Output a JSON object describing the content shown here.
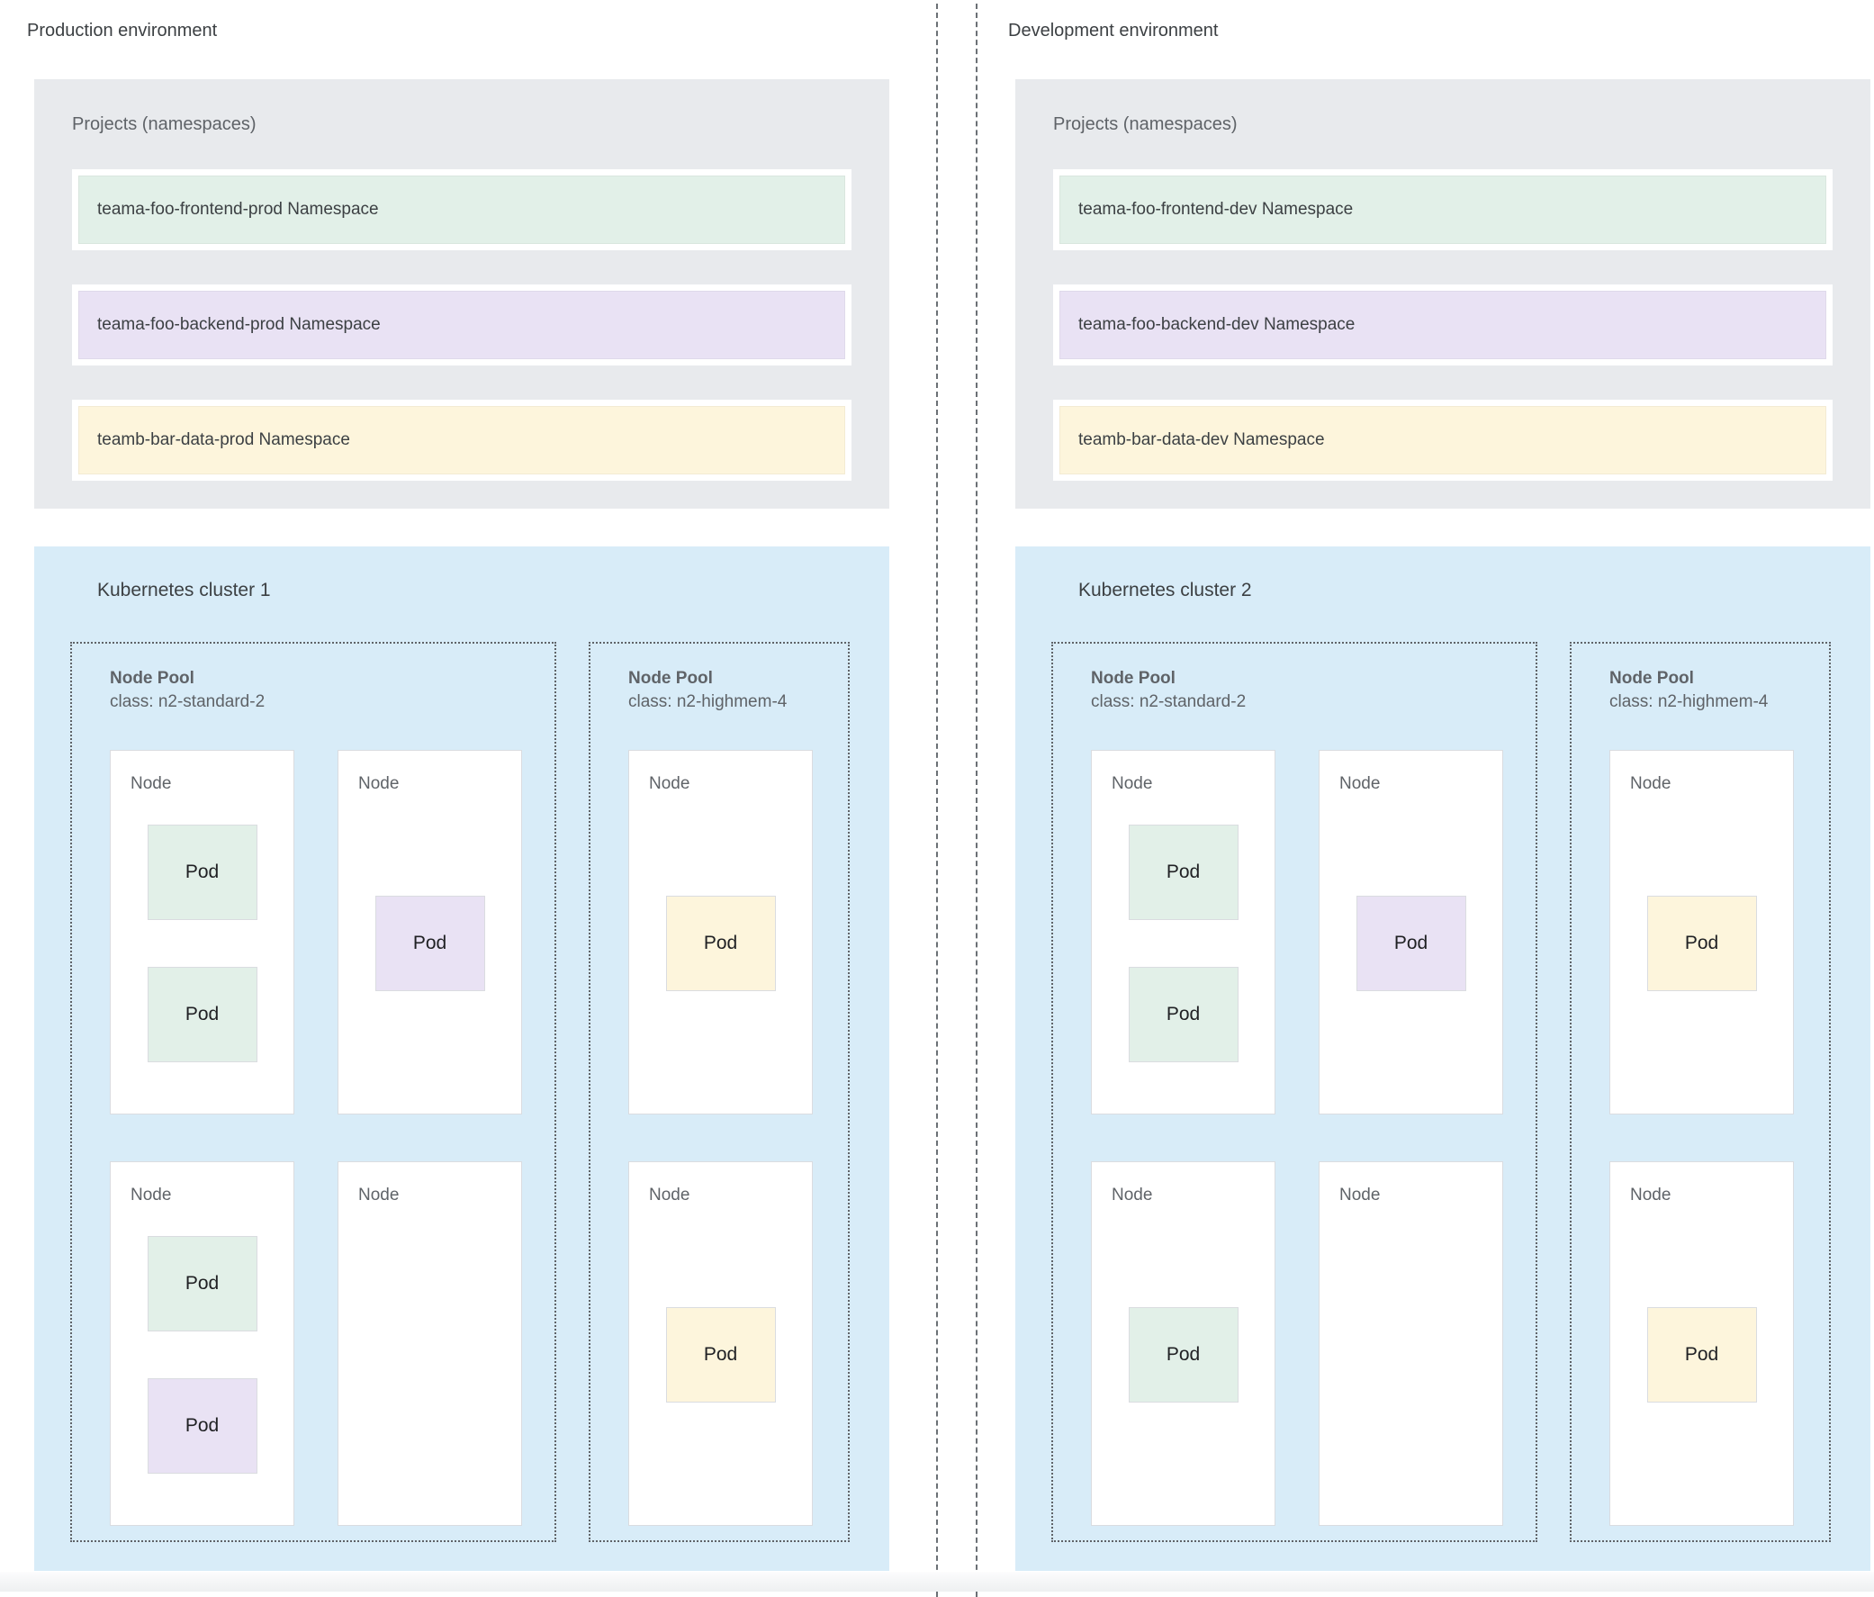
{
  "palette": {
    "namespace_green": "#e2f0e8",
    "namespace_purple": "#e9e2f4",
    "namespace_yellow": "#fdf5dc",
    "cluster_background": "#d8ecf8",
    "projects_background": "#e8eaed",
    "node_background": "#ffffff",
    "divider_color": "#6b7075"
  },
  "environments": [
    {
      "label": "Production environment",
      "projects": {
        "title": "Projects (namespaces)",
        "namespaces": [
          {
            "label": "teama-foo-frontend-prod Namespace",
            "color": "green"
          },
          {
            "label": "teama-foo-backend-prod Namespace",
            "color": "purple"
          },
          {
            "label": "teamb-bar-data-prod Namespace",
            "color": "yellow"
          }
        ]
      },
      "cluster": {
        "title": "Kubernetes cluster 1",
        "node_pools": [
          {
            "title": "Node Pool",
            "machine_class": "class: n2-standard-2",
            "nodes": [
              {
                "label": "Node",
                "pods": [
                  {
                    "label": "Pod",
                    "color": "green"
                  },
                  {
                    "label": "Pod",
                    "color": "green"
                  }
                ]
              },
              {
                "label": "Node",
                "pods": [
                  {
                    "label": "Pod",
                    "color": "purple"
                  }
                ]
              },
              {
                "label": "Node",
                "pods": [
                  {
                    "label": "Pod",
                    "color": "green"
                  },
                  {
                    "label": "Pod",
                    "color": "purple"
                  }
                ]
              },
              {
                "label": "Node",
                "pods": []
              }
            ]
          },
          {
            "title": "Node Pool",
            "machine_class": "class: n2-highmem-4",
            "nodes": [
              {
                "label": "Node",
                "pods": [
                  {
                    "label": "Pod",
                    "color": "yellow"
                  }
                ]
              },
              {
                "label": "Node",
                "pods": [
                  {
                    "label": "Pod",
                    "color": "yellow"
                  }
                ]
              }
            ]
          }
        ]
      }
    },
    {
      "label": "Development environment",
      "projects": {
        "title": "Projects (namespaces)",
        "namespaces": [
          {
            "label": "teama-foo-frontend-dev Namespace",
            "color": "green"
          },
          {
            "label": "teama-foo-backend-dev Namespace",
            "color": "purple"
          },
          {
            "label": "teamb-bar-data-dev Namespace",
            "color": "yellow"
          }
        ]
      },
      "cluster": {
        "title": "Kubernetes cluster 2",
        "node_pools": [
          {
            "title": "Node Pool",
            "machine_class": "class: n2-standard-2",
            "nodes": [
              {
                "label": "Node",
                "pods": [
                  {
                    "label": "Pod",
                    "color": "green"
                  },
                  {
                    "label": "Pod",
                    "color": "green"
                  }
                ]
              },
              {
                "label": "Node",
                "pods": [
                  {
                    "label": "Pod",
                    "color": "purple"
                  }
                ]
              },
              {
                "label": "Node",
                "pods": [
                  {
                    "label": "Pod",
                    "color": "green"
                  }
                ]
              },
              {
                "label": "Node",
                "pods": []
              }
            ]
          },
          {
            "title": "Node Pool",
            "machine_class": "class: n2-highmem-4",
            "nodes": [
              {
                "label": "Node",
                "pods": [
                  {
                    "label": "Pod",
                    "color": "yellow"
                  }
                ]
              },
              {
                "label": "Node",
                "pods": [
                  {
                    "label": "Pod",
                    "color": "yellow"
                  }
                ]
              }
            ]
          }
        ]
      }
    }
  ]
}
